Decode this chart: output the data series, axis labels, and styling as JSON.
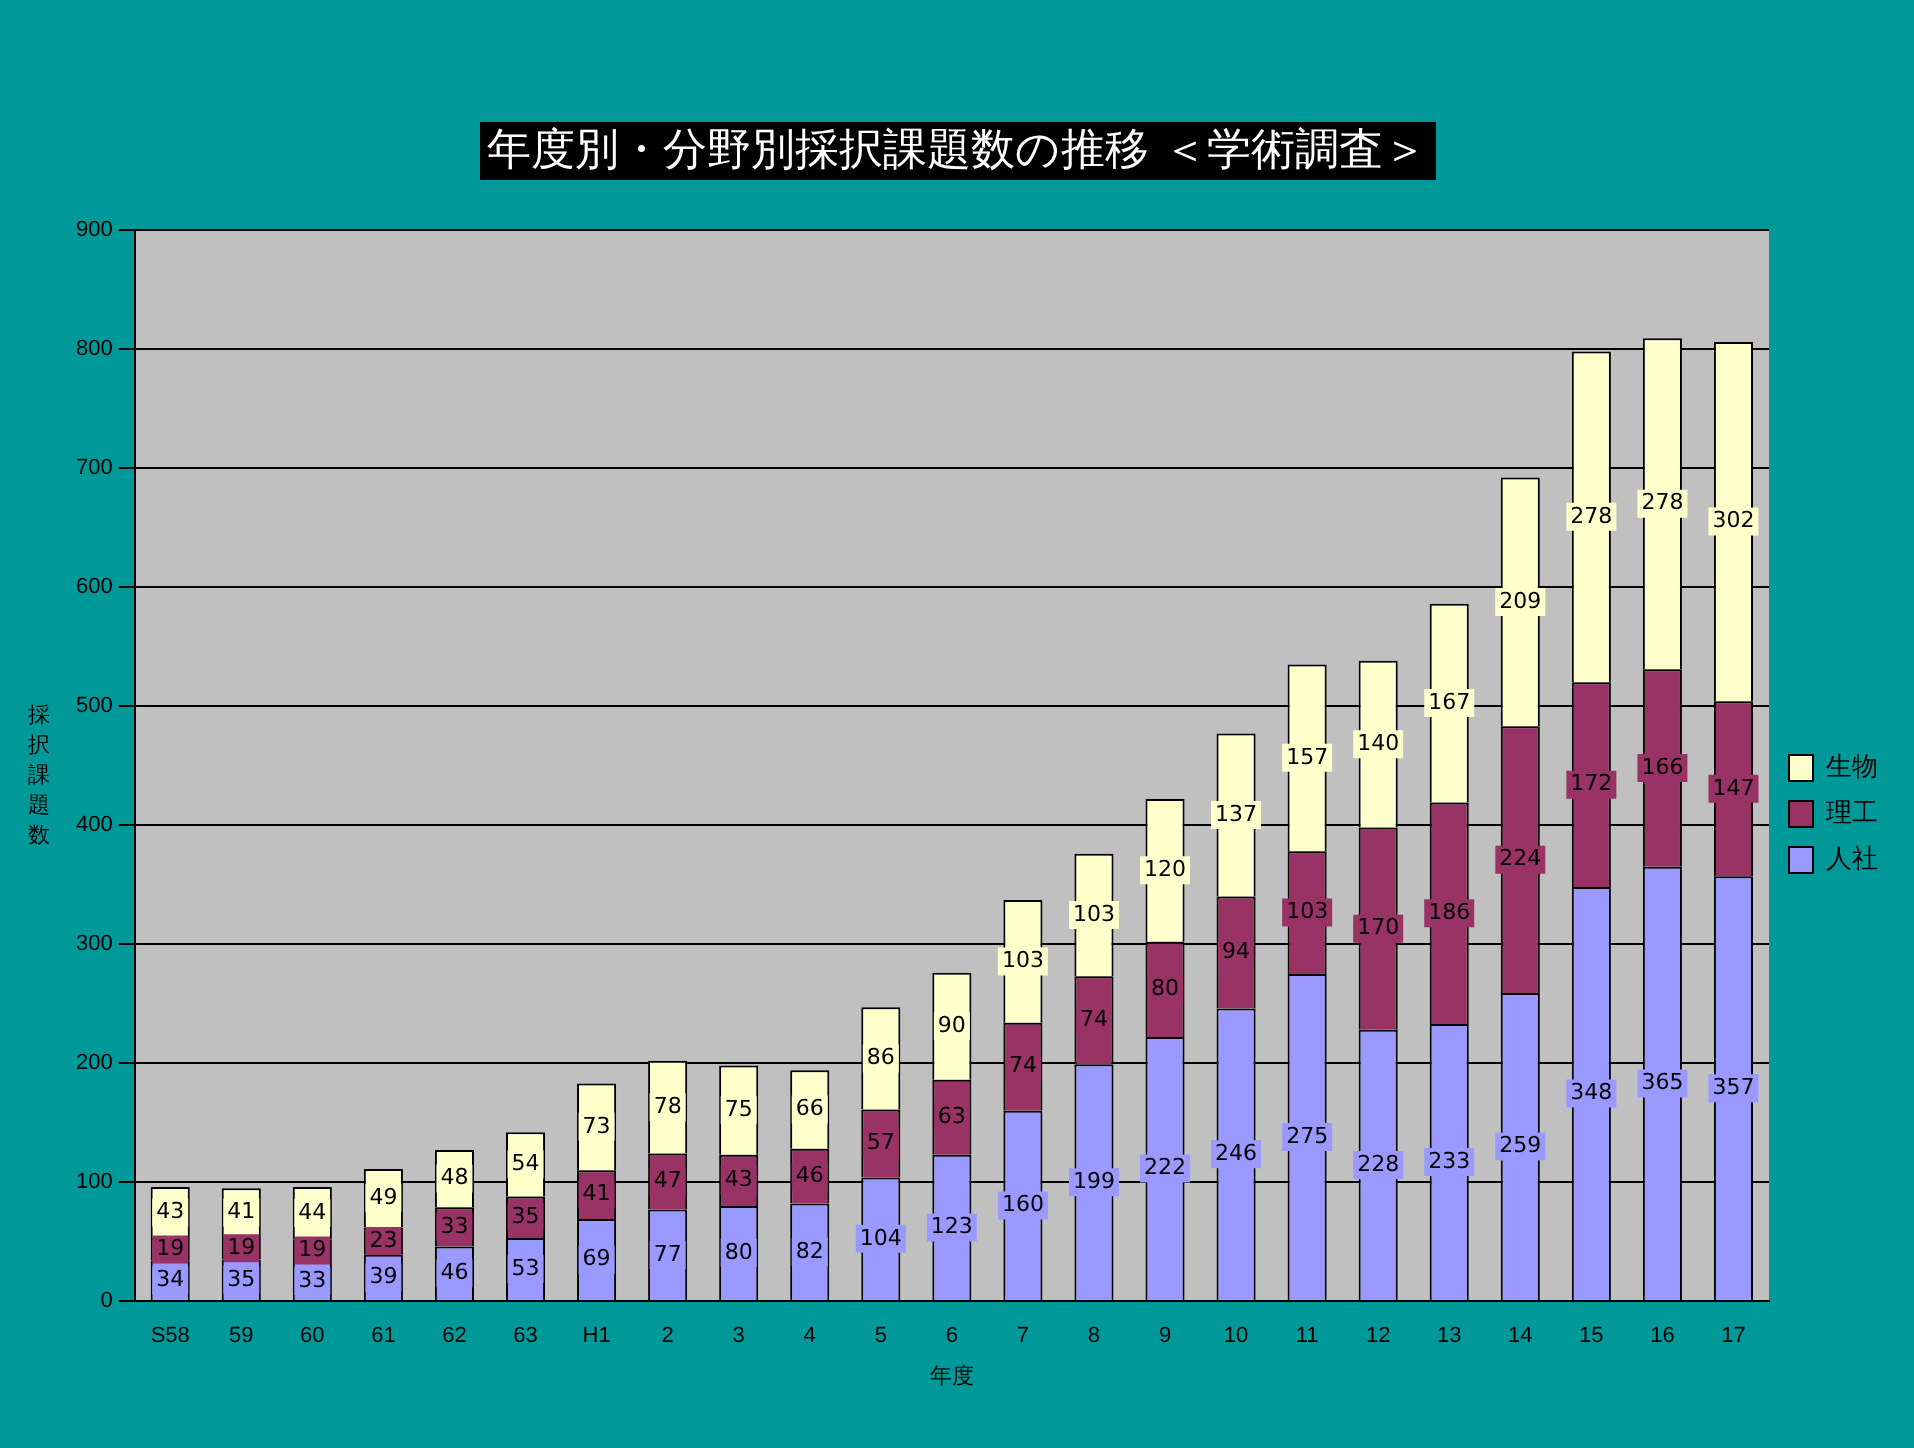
{
  "chart_data": {
    "type": "bar",
    "title": "年度別・分野別採択課題数の推移 ＜学術調査＞",
    "xlabel": "年度",
    "ylabel": "採択課題数",
    "categories": [
      "S58",
      "59",
      "60",
      "61",
      "62",
      "63",
      "H1",
      "2",
      "3",
      "4",
      "5",
      "6",
      "7",
      "8",
      "9",
      "10",
      "11",
      "12",
      "13",
      "14",
      "15",
      "16",
      "17"
    ],
    "stacked": true,
    "ylim": [
      0,
      900
    ],
    "yticks": [
      0,
      100,
      200,
      300,
      400,
      500,
      600,
      700,
      800,
      900
    ],
    "grid": "y",
    "legend": "right",
    "data_labels": true,
    "series": [
      {
        "name": "人社",
        "color": "#9999ff",
        "values": [
          34,
          35,
          33,
          39,
          46,
          53,
          69,
          77,
          80,
          82,
          104,
          123,
          160,
          199,
          222,
          246,
          275,
          228,
          233,
          259,
          348,
          365,
          357
        ]
      },
      {
        "name": "理工",
        "color": "#993366",
        "values": [
          19,
          19,
          19,
          23,
          33,
          35,
          41,
          47,
          43,
          46,
          57,
          63,
          74,
          74,
          80,
          94,
          103,
          170,
          186,
          224,
          172,
          166,
          147
        ]
      },
      {
        "name": "生物",
        "color": "#ffffcc",
        "values": [
          43,
          41,
          44,
          49,
          48,
          54,
          73,
          78,
          75,
          66,
          86,
          90,
          103,
          103,
          120,
          137,
          157,
          140,
          167,
          209,
          278,
          278,
          302
        ]
      }
    ]
  }
}
